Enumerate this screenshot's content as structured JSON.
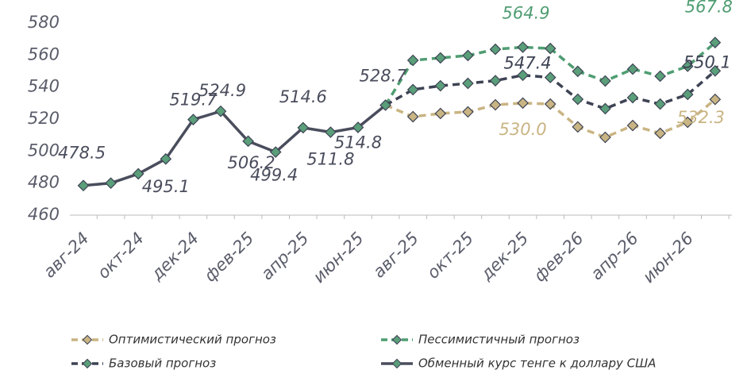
{
  "chart_data": {
    "type": "line",
    "categories": [
      "авг-24",
      null,
      "окт-24",
      null,
      "дек-24",
      null,
      "фев-25",
      null,
      "апр-25",
      null,
      "июн-25",
      null,
      "авг-25",
      null,
      "окт-25",
      null,
      "дек-25",
      null,
      "фев-26",
      null,
      "апр-26",
      null,
      "июн-26",
      null
    ],
    "ylim": [
      460,
      580
    ],
    "yticks": [
      460,
      480,
      500,
      520,
      540,
      560,
      580
    ],
    "legend": "bottom",
    "series": [
      {
        "name": "Оптимистический прогноз",
        "color": "#c9b483",
        "marker": "#c9b483",
        "dashed": true,
        "values": [
          null,
          null,
          null,
          null,
          null,
          null,
          null,
          null,
          null,
          null,
          null,
          528.7,
          521.5,
          523.5,
          524.5,
          528.9,
          530.0,
          529.4,
          515.1,
          508.6,
          516.0,
          511.1,
          518.0,
          532.3
        ],
        "value_labels": [
          null,
          null,
          null,
          null,
          null,
          null,
          null,
          null,
          null,
          null,
          null,
          null,
          null,
          null,
          null,
          null,
          "530.0",
          null,
          null,
          null,
          null,
          null,
          null,
          "532.3"
        ]
      },
      {
        "name": "Пессимистичный прогноз",
        "color": "#4f9d72",
        "marker": "#5a9e7a",
        "dashed": true,
        "values": [
          null,
          null,
          null,
          null,
          null,
          null,
          null,
          null,
          null,
          null,
          null,
          528.7,
          556.7,
          558.2,
          559.7,
          563.6,
          564.9,
          564.1,
          549.8,
          543.8,
          551.2,
          546.8,
          553.0,
          567.8
        ],
        "value_labels": [
          null,
          null,
          null,
          null,
          null,
          null,
          null,
          null,
          null,
          null,
          null,
          null,
          null,
          null,
          null,
          null,
          "564.9",
          null,
          null,
          null,
          null,
          null,
          null,
          "567.8"
        ]
      },
      {
        "name": "Базовый прогноз",
        "color": "#3e4354",
        "marker": "#5a9e7a",
        "dashed": true,
        "values": [
          null,
          null,
          null,
          null,
          null,
          null,
          null,
          null,
          null,
          null,
          null,
          528.7,
          538.4,
          540.8,
          542.3,
          544.0,
          547.4,
          546.0,
          532.4,
          526.5,
          533.4,
          529.4,
          535.4,
          550.1
        ],
        "value_labels": [
          null,
          null,
          null,
          null,
          null,
          null,
          null,
          null,
          null,
          null,
          null,
          null,
          null,
          null,
          null,
          null,
          "547.4",
          null,
          null,
          null,
          null,
          null,
          null,
          "550.1"
        ]
      },
      {
        "name": "Обменный курс тенге к доллару США",
        "color": "#4a4d5c",
        "marker": "#5a9e7a",
        "dashed": false,
        "values": [
          478.5,
          480.0,
          485.8,
          495.1,
          519.7,
          524.9,
          506.2,
          499.4,
          514.6,
          511.8,
          514.8,
          528.7,
          null,
          null,
          null,
          null,
          null,
          null,
          null,
          null,
          null,
          null,
          null,
          null
        ],
        "value_labels": [
          "478.5",
          null,
          null,
          "495.1",
          "519.7",
          "524.9",
          "506.2",
          "499.4",
          "514.6",
          "511.8",
          "514.8",
          "528.7",
          null,
          null,
          null,
          null,
          null,
          null,
          null,
          null,
          null,
          null,
          null,
          null
        ]
      }
    ]
  }
}
